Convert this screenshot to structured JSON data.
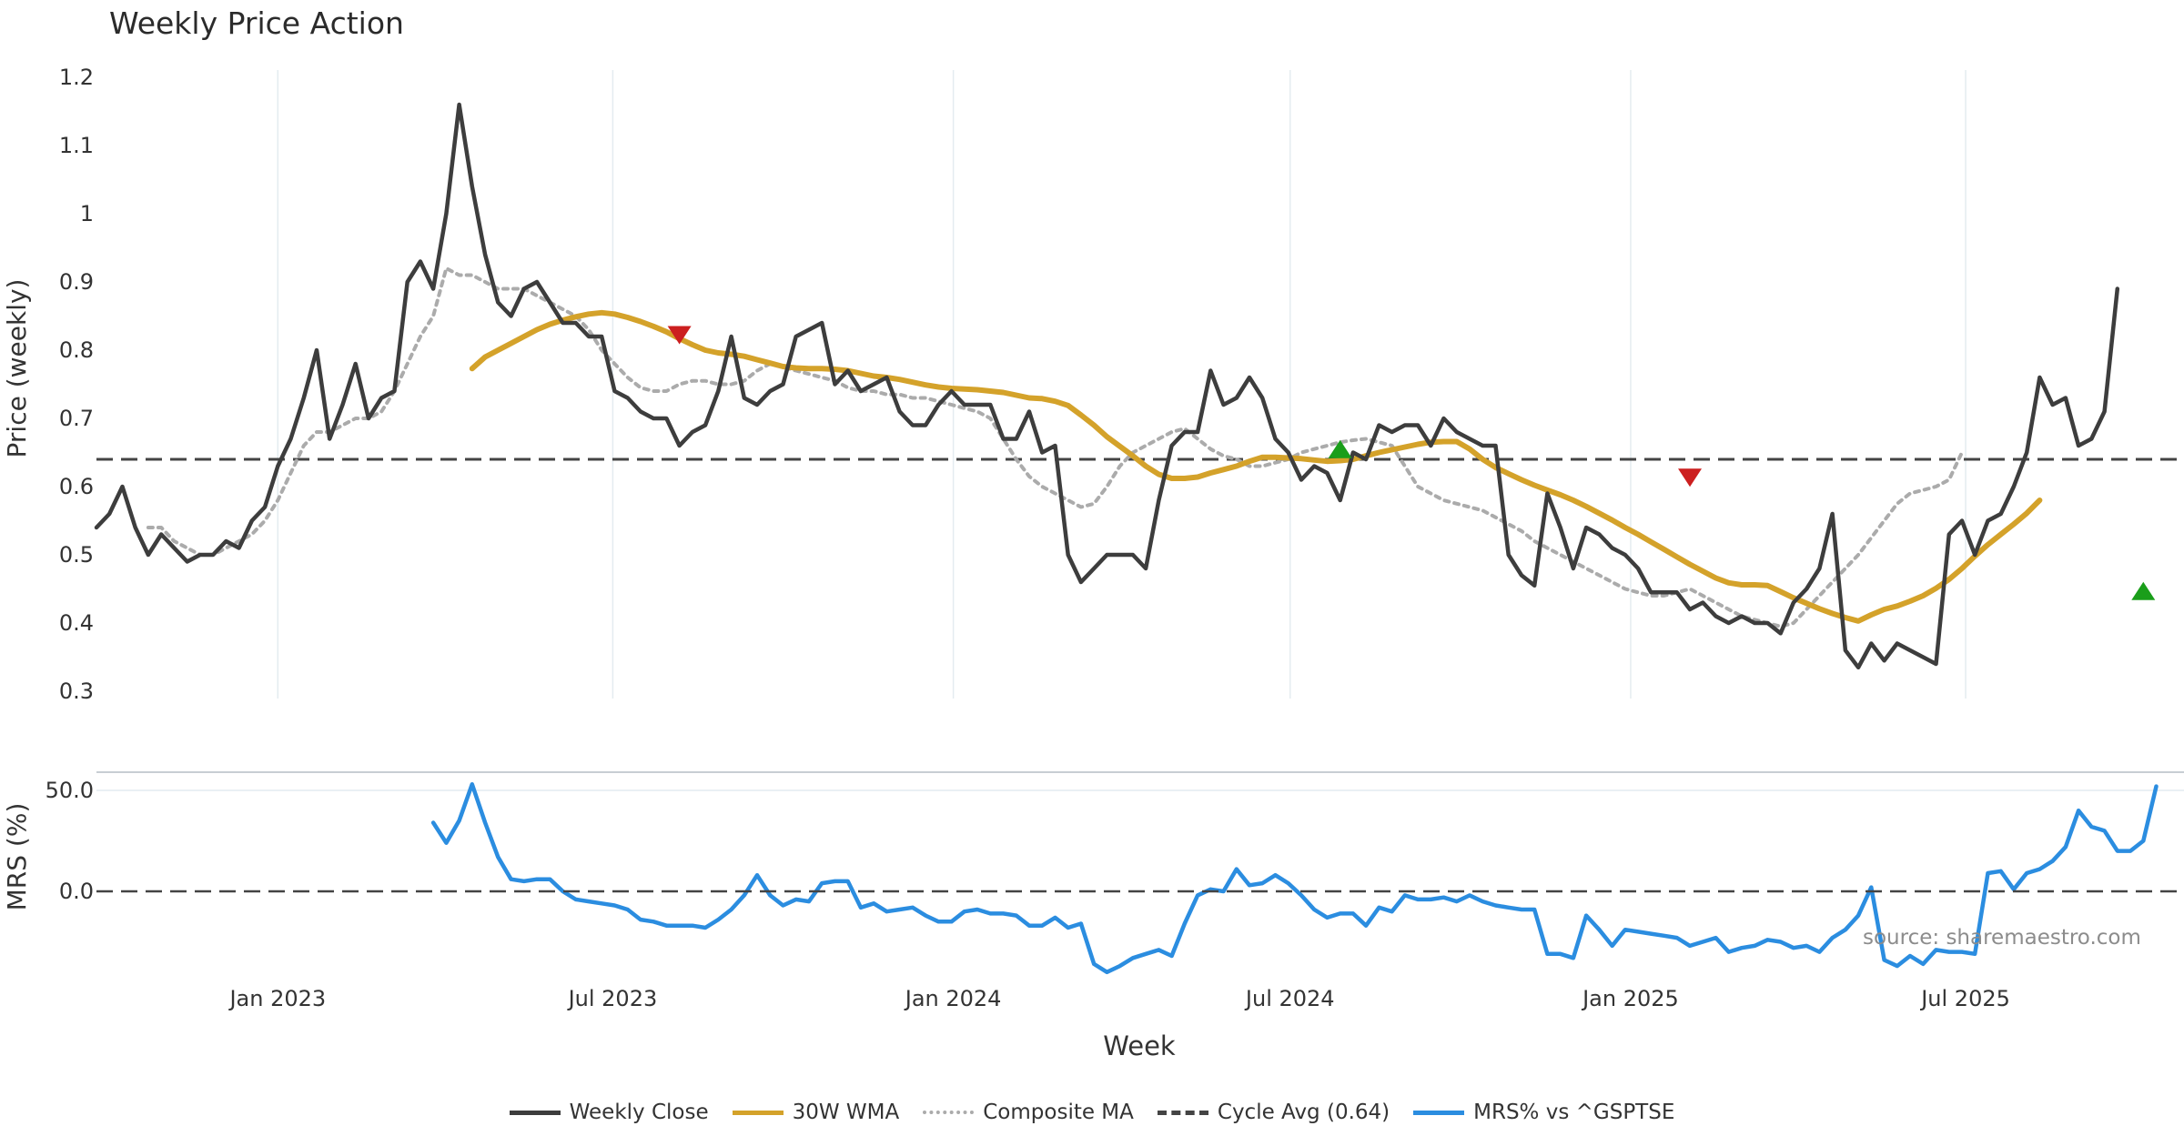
{
  "chart_data": {
    "type": "line",
    "title": "Weekly Price Action",
    "xlabel": "Week",
    "x_ticks": [
      "Jan 2023",
      "Jul 2023",
      "Jan 2024",
      "Jul 2024",
      "Jan 2025",
      "Jul 2025"
    ],
    "price_panel": {
      "ylabel": "Price (weekly)",
      "ylim": [
        0.3,
        1.2
      ],
      "yticks": [
        "0.3",
        "0.4",
        "0.5",
        "0.6",
        "0.7",
        "0.8",
        "0.9",
        "1",
        "1.1",
        "1.2"
      ],
      "start_date": "2022-09-25",
      "series": [
        {
          "name": "Weekly Close",
          "color": "#3d3d3d",
          "style": "solid",
          "start_week": 0,
          "values": [
            0.54,
            0.56,
            0.6,
            0.54,
            0.5,
            0.53,
            0.51,
            0.49,
            0.5,
            0.5,
            0.52,
            0.51,
            0.55,
            0.57,
            0.63,
            0.67,
            0.73,
            0.8,
            0.67,
            0.72,
            0.78,
            0.7,
            0.73,
            0.74,
            0.9,
            0.93,
            0.89,
            1.0,
            1.16,
            1.04,
            0.94,
            0.87,
            0.85,
            0.89,
            0.9,
            0.87,
            0.84,
            0.84,
            0.82,
            0.82,
            0.74,
            0.73,
            0.71,
            0.7,
            0.7,
            0.66,
            0.68,
            0.69,
            0.74,
            0.82,
            0.73,
            0.72,
            0.74,
            0.75,
            0.82,
            0.83,
            0.84,
            0.75,
            0.77,
            0.74,
            0.75,
            0.76,
            0.71,
            0.69,
            0.69,
            0.72,
            0.74,
            0.72,
            0.72,
            0.72,
            0.67,
            0.67,
            0.71,
            0.65,
            0.66,
            0.5,
            0.46,
            0.48,
            0.5,
            0.5,
            0.5,
            0.48,
            0.58,
            0.66,
            0.68,
            0.68,
            0.77,
            0.72,
            0.73,
            0.76,
            0.73,
            0.67,
            0.65,
            0.61,
            0.63,
            0.62,
            0.58,
            0.65,
            0.64,
            0.69,
            0.68,
            0.69,
            0.69,
            0.66,
            0.7,
            0.68,
            0.67,
            0.66,
            0.66,
            0.5,
            0.47,
            0.455,
            0.59,
            0.54,
            0.48,
            0.54,
            0.53,
            0.51,
            0.5,
            0.48,
            0.445,
            0.445,
            0.445,
            0.42,
            0.43,
            0.41,
            0.4,
            0.41,
            0.4,
            0.4,
            0.385,
            0.43,
            0.45,
            0.48,
            0.56,
            0.36,
            0.335,
            0.37,
            0.345,
            0.37,
            0.36,
            0.35,
            0.34,
            0.53,
            0.55,
            0.5,
            0.55,
            0.56,
            0.6,
            0.65,
            0.76,
            0.72,
            0.73,
            0.66,
            0.67,
            0.71,
            0.89
          ]
        },
        {
          "name": "30W WMA",
          "color": "#d4a22a",
          "style": "solid",
          "start_week": 29,
          "values": [
            0.773,
            0.79,
            0.8,
            0.81,
            0.82,
            0.83,
            0.838,
            0.844,
            0.849,
            0.853,
            0.855,
            0.853,
            0.848,
            0.842,
            0.835,
            0.827,
            0.817,
            0.808,
            0.8,
            0.796,
            0.794,
            0.791,
            0.786,
            0.781,
            0.776,
            0.774,
            0.773,
            0.773,
            0.772,
            0.77,
            0.766,
            0.762,
            0.76,
            0.757,
            0.753,
            0.749,
            0.746,
            0.744,
            0.743,
            0.742,
            0.74,
            0.738,
            0.734,
            0.73,
            0.729,
            0.725,
            0.719,
            0.705,
            0.69,
            0.673,
            0.659,
            0.645,
            0.63,
            0.618,
            0.612,
            0.612,
            0.614,
            0.62,
            0.625,
            0.63,
            0.637,
            0.643,
            0.643,
            0.642,
            0.641,
            0.639,
            0.637,
            0.638,
            0.64,
            0.645,
            0.65,
            0.654,
            0.658,
            0.662,
            0.665,
            0.666,
            0.666,
            0.655,
            0.64,
            0.628,
            0.619,
            0.61,
            0.602,
            0.595,
            0.588,
            0.58,
            0.571,
            0.561,
            0.551,
            0.54,
            0.53,
            0.519,
            0.508,
            0.497,
            0.486,
            0.476,
            0.466,
            0.459,
            0.456,
            0.456,
            0.455,
            0.446,
            0.437,
            0.429,
            0.421,
            0.414,
            0.408,
            0.403,
            0.412,
            0.42,
            0.425,
            0.432,
            0.44,
            0.451,
            0.464,
            0.48,
            0.498,
            0.515,
            0.53,
            0.545,
            0.561,
            0.58
          ]
        },
        {
          "name": "Composite MA",
          "color": "#ababab",
          "style": "dotted",
          "start_week": 4,
          "values": [
            0.54,
            0.54,
            0.52,
            0.51,
            0.5,
            0.5,
            0.51,
            0.52,
            0.53,
            0.55,
            0.58,
            0.62,
            0.66,
            0.68,
            0.68,
            0.69,
            0.7,
            0.7,
            0.71,
            0.74,
            0.78,
            0.82,
            0.85,
            0.92,
            0.91,
            0.91,
            0.9,
            0.89,
            0.89,
            0.89,
            0.88,
            0.87,
            0.86,
            0.85,
            0.83,
            0.8,
            0.78,
            0.76,
            0.745,
            0.74,
            0.74,
            0.75,
            0.755,
            0.755,
            0.75,
            0.75,
            0.755,
            0.77,
            0.78,
            0.775,
            0.77,
            0.765,
            0.76,
            0.755,
            0.745,
            0.74,
            0.74,
            0.735,
            0.735,
            0.73,
            0.73,
            0.725,
            0.72,
            0.715,
            0.71,
            0.7,
            0.67,
            0.64,
            0.615,
            0.6,
            0.59,
            0.58,
            0.57,
            0.575,
            0.6,
            0.63,
            0.65,
            0.66,
            0.67,
            0.68,
            0.685,
            0.67,
            0.655,
            0.645,
            0.64,
            0.63,
            0.63,
            0.635,
            0.64,
            0.65,
            0.655,
            0.66,
            0.665,
            0.668,
            0.67,
            0.665,
            0.66,
            0.63,
            0.6,
            0.59,
            0.58,
            0.575,
            0.57,
            0.565,
            0.555,
            0.545,
            0.535,
            0.52,
            0.51,
            0.5,
            0.49,
            0.48,
            0.47,
            0.46,
            0.45,
            0.445,
            0.44,
            0.44,
            0.445,
            0.45,
            0.44,
            0.43,
            0.42,
            0.41,
            0.405,
            0.4,
            0.395,
            0.4,
            0.42,
            0.44,
            0.46,
            0.48,
            0.5,
            0.525,
            0.55,
            0.575,
            0.59,
            0.595,
            0.6,
            0.61,
            0.65
          ]
        },
        {
          "name": "Cycle Avg (0.64)",
          "color": "#444444",
          "style": "dashed",
          "constant": 0.64
        }
      ],
      "signals": [
        {
          "type": "sell",
          "week": 45,
          "value": 0.822,
          "color": "#cc1f1f"
        },
        {
          "type": "buy",
          "week": 96,
          "value": 0.655,
          "color": "#1a9e1a"
        },
        {
          "type": "sell",
          "week": 123,
          "value": 0.613,
          "color": "#cc1f1f"
        },
        {
          "type": "buy",
          "week": 158,
          "value": 0.447,
          "color": "#1a9e1a"
        }
      ]
    },
    "mrs_panel": {
      "ylabel": "MRS (%)",
      "ylim": [
        -45,
        60
      ],
      "yticks": [
        "0.0",
        "50.0"
      ],
      "series": [
        {
          "name": "MRS% vs ^GSPTSE",
          "color": "#2b8de0",
          "start_week": 26,
          "values": [
            34,
            24,
            35,
            53,
            34,
            17,
            6,
            5,
            6,
            6,
            0,
            -4,
            -5,
            -6,
            -7,
            -9,
            -14,
            -15,
            -17,
            -17,
            -17,
            -18,
            -14,
            -9,
            -2,
            8,
            -2,
            -7,
            -4,
            -5,
            4,
            5,
            5,
            -8,
            -6,
            -10,
            -9,
            -8,
            -12,
            -15,
            -15,
            -10,
            -9,
            -11,
            -11,
            -12,
            -17,
            -17,
            -13,
            -18,
            -16,
            -36,
            -40,
            -37,
            -33,
            -31,
            -29,
            -32,
            -16,
            -2,
            1,
            0,
            11,
            3,
            4,
            8,
            4,
            -2,
            -9,
            -13,
            -11,
            -11,
            -17,
            -8,
            -10,
            -2,
            -4,
            -4,
            -3,
            -5,
            -2,
            -5,
            -7,
            -8,
            -9,
            -9,
            -31,
            -31,
            -33,
            -12,
            -19,
            -27,
            -19,
            -20,
            -21,
            -22,
            -23,
            -27,
            -25,
            -23,
            -30,
            -28,
            -27,
            -24,
            -25,
            -28,
            -27,
            -30,
            -23,
            -19,
            -12,
            2,
            -34,
            -37,
            -32,
            -36,
            -29,
            -30,
            -30,
            -31,
            9,
            10,
            1,
            9,
            11,
            15,
            22,
            40,
            32,
            30,
            20,
            20,
            25,
            52
          ]
        },
        {
          "name": "zero-line",
          "color": "#444444",
          "style": "dashed",
          "constant": 0
        }
      ]
    },
    "total_weeks": 162,
    "grid": true,
    "legend_position": "bottom-center",
    "annotation": "source: sharemaestro.com"
  },
  "legend": [
    {
      "label": "Weekly Close",
      "color": "#3d3d3d",
      "style": "solid"
    },
    {
      "label": "30W WMA",
      "color": "#d4a22a",
      "style": "solid"
    },
    {
      "label": "Composite MA",
      "color": "#ababab",
      "style": "dotted"
    },
    {
      "label": "Cycle Avg (0.64)",
      "color": "#444444",
      "style": "dashed"
    },
    {
      "label": "MRS% vs ^GSPTSE",
      "color": "#2b8de0",
      "style": "solid"
    }
  ]
}
